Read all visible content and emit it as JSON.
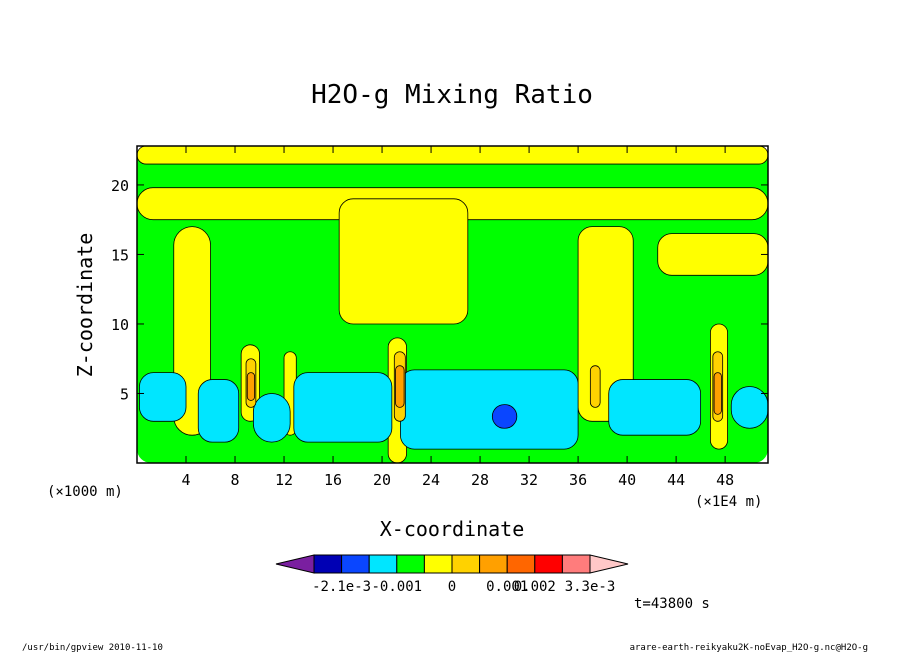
{
  "chart_data": {
    "type": "heatmap",
    "title": "H2O-g Mixing Ratio",
    "xlabel": "X-coordinate",
    "ylabel": "Z-coordinate",
    "x_units": "(×1000 m)",
    "x_units_right": "(×1E4 m)",
    "x_range": [
      0,
      51.5
    ],
    "y_range": [
      0,
      22.8
    ],
    "x_ticks": [
      "4",
      "8",
      "12",
      "16",
      "20",
      "24",
      "28",
      "32",
      "36",
      "40",
      "44",
      "48"
    ],
    "y_ticks": [
      "5",
      "10",
      "15",
      "20"
    ],
    "colorbar": {
      "labels": [
        "-2.1e-3",
        "-0.001",
        "0",
        "0.001",
        "0.002",
        "3.3e-3"
      ],
      "colors": [
        "#7a1fa0",
        "#0000b4",
        "#0a46ff",
        "#00e6ff",
        "#00ff00",
        "#ffff00",
        "#ffd200",
        "#ffa000",
        "#ff6600",
        "#ff0000",
        "#ff7c7c",
        "#ffc8c8"
      ]
    },
    "regions": [
      {
        "level": "green",
        "x0": 0,
        "x1": 51.5,
        "y0": 0,
        "y1": 22.8
      },
      {
        "level": "yellow",
        "x0": 0,
        "x1": 51.5,
        "y0": 21.5,
        "y1": 22.8
      },
      {
        "level": "yellow",
        "x0": 0,
        "x1": 51.5,
        "y0": 17.5,
        "y1": 19.8
      },
      {
        "level": "yellow",
        "x0": 16.5,
        "x1": 27,
        "y0": 10,
        "y1": 19
      },
      {
        "level": "yellow",
        "x0": 42.5,
        "x1": 51.5,
        "y0": 13.5,
        "y1": 16.5
      },
      {
        "level": "yellow",
        "x0": 3,
        "x1": 6,
        "y0": 2,
        "y1": 17
      },
      {
        "level": "yellow",
        "x0": 36,
        "x1": 40.5,
        "y0": 3,
        "y1": 17
      },
      {
        "level": "yellow",
        "x0": 8.5,
        "x1": 10,
        "y0": 3,
        "y1": 8.5
      },
      {
        "level": "yellow",
        "x0": 12,
        "x1": 13,
        "y0": 2,
        "y1": 8
      },
      {
        "level": "yellow",
        "x0": 20.5,
        "x1": 22,
        "y0": 0,
        "y1": 9
      },
      {
        "level": "yellow",
        "x0": 46.8,
        "x1": 48.2,
        "y0": 1,
        "y1": 10
      },
      {
        "level": "cyan",
        "x0": 0.2,
        "x1": 4,
        "y0": 3,
        "y1": 6.5
      },
      {
        "level": "cyan",
        "x0": 5,
        "x1": 8.3,
        "y0": 1.5,
        "y1": 6
      },
      {
        "level": "cyan",
        "x0": 9.5,
        "x1": 12.5,
        "y0": 1.5,
        "y1": 5
      },
      {
        "level": "cyan",
        "x0": 12.8,
        "x1": 20.8,
        "y0": 1.5,
        "y1": 6.5
      },
      {
        "level": "cyan",
        "x0": 21.5,
        "x1": 36,
        "y0": 1,
        "y1": 6.7
      },
      {
        "level": "cyan",
        "x0": 38.5,
        "x1": 46,
        "y0": 2,
        "y1": 6
      },
      {
        "level": "cyan",
        "x0": 48.5,
        "x1": 51.5,
        "y0": 2.5,
        "y1": 5.5
      },
      {
        "level": "blue",
        "x0": 29,
        "x1": 31,
        "y0": 2.5,
        "y1": 4.2
      },
      {
        "level": "gold",
        "x0": 8.9,
        "x1": 9.7,
        "y0": 4,
        "y1": 7.5
      },
      {
        "level": "gold",
        "x0": 21,
        "x1": 21.9,
        "y0": 3,
        "y1": 8
      },
      {
        "level": "gold",
        "x0": 37,
        "x1": 37.8,
        "y0": 4,
        "y1": 7
      },
      {
        "level": "gold",
        "x0": 47,
        "x1": 47.8,
        "y0": 3,
        "y1": 8
      },
      {
        "level": "orange",
        "x0": 9,
        "x1": 9.6,
        "y0": 4.5,
        "y1": 6.5
      },
      {
        "level": "orange",
        "x0": 21.1,
        "x1": 21.8,
        "y0": 4,
        "y1": 7
      },
      {
        "level": "orange",
        "x0": 47.1,
        "x1": 47.7,
        "y0": 3.5,
        "y1": 6.5
      }
    ]
  },
  "footer": {
    "time": "t=43800 s",
    "left": "/usr/bin/gpview   2010-11-10",
    "right": "arare-earth-reikyaku2K-noEvap_H2O-g.nc@H2O-g"
  }
}
